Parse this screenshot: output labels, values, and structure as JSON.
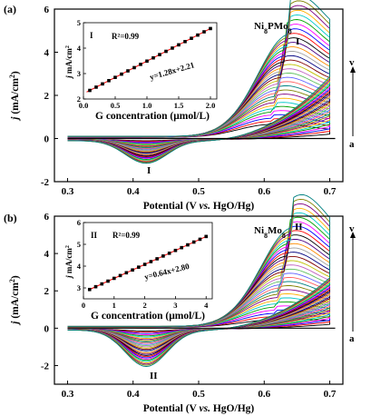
{
  "chart_data": [
    {
      "panel": "(a)",
      "type": "line",
      "xlabel": "Potential (V vs. HgO/Hg)",
      "ylabel": "j (mA/cm²)",
      "xlim": [
        0.28,
        0.72
      ],
      "ylim": [
        -2,
        6
      ],
      "xticks": [
        "0.3",
        "0.4",
        "0.5",
        "0.6",
        "0.7"
      ],
      "yticks": [
        "-2",
        "0",
        "2",
        "4",
        "6"
      ],
      "sample_label": "Ni8PMo8",
      "sample_main": "Ni",
      "sample_sub1": "8",
      "sample_mid": "PMo",
      "sample_sub2": "8",
      "peak_ox": {
        "label": "I",
        "x": 0.645,
        "y": 5.0
      },
      "peak_red": {
        "label": "I",
        "x": 0.42,
        "y": -0.95
      },
      "arrow_top": "v",
      "arrow_bottom": "a",
      "curve_count": 30,
      "cv_model": {
        "ox_peak_x": 0.64,
        "ox_peak_max": 4.75,
        "ox_peak_min": 0.6,
        "red_peak_x": 0.42,
        "red_peak_min": -1.05,
        "red_peak_max": -0.05,
        "end_current_max": 3.2
      },
      "inset": {
        "label": "I",
        "r2": "R²=0.99",
        "equation": "y=1.28x+2.21",
        "xlabel": "G concentration (μmol/L)",
        "ylabel": "j mA/cm²",
        "xlim": [
          0,
          2.1
        ],
        "ylim": [
          2,
          5
        ],
        "xticks": [
          "0.0",
          "0.5",
          "1.0",
          "1.5",
          "2.0"
        ],
        "yticks": [
          "2",
          "3",
          "4",
          "5"
        ],
        "slope": 1.28,
        "intercept": 2.21,
        "x": [
          0.1,
          0.2,
          0.3,
          0.4,
          0.5,
          0.6,
          0.7,
          0.8,
          0.9,
          1.0,
          1.1,
          1.2,
          1.3,
          1.4,
          1.5,
          1.6,
          1.7,
          1.8,
          1.9,
          2.0
        ]
      }
    },
    {
      "panel": "(b)",
      "type": "line",
      "xlabel": "Potential (V vs. HgO/Hg)",
      "ylabel": "j (mA/cm²)",
      "xlim": [
        0.28,
        0.72
      ],
      "ylim": [
        -3,
        6
      ],
      "xticks": [
        "0.3",
        "0.4",
        "0.5",
        "0.6",
        "0.7"
      ],
      "yticks": [
        "-2",
        "0",
        "2",
        "4",
        "6"
      ],
      "sample_label": "Ni8Mo8",
      "sample_main": "Ni",
      "sample_sub1": "8",
      "sample_mid": "Mo",
      "sample_sub2": "8",
      "peak_ox": {
        "label": "II",
        "x": 0.645,
        "y": 5.5
      },
      "peak_red": {
        "label": "II",
        "x": 0.43,
        "y": -2.4
      },
      "arrow_top": "v",
      "arrow_bottom": "a",
      "curve_count": 30,
      "cv_model": {
        "ox_peak_x": 0.645,
        "ox_peak_max": 5.3,
        "ox_peak_min": 0.4,
        "red_peak_x": 0.42,
        "red_peak_min": -1.95,
        "red_peak_max": -0.1,
        "end_current_max": 3.0
      },
      "inset": {
        "label": "II",
        "r2": "R²=0.99",
        "equation": "y=0.64x+2.80",
        "xlabel": "G concentration (μmol/L)",
        "ylabel": "j mA/cm²",
        "xlim": [
          0,
          4.2
        ],
        "ylim": [
          2.5,
          6
        ],
        "xticks": [
          "0",
          "1",
          "2",
          "3",
          "4"
        ],
        "yticks": [
          "3",
          "4",
          "5",
          "6"
        ],
        "slope": 0.64,
        "intercept": 2.8,
        "x": [
          0.2,
          0.4,
          0.6,
          0.8,
          1.0,
          1.2,
          1.4,
          1.6,
          1.8,
          2.0,
          2.2,
          2.4,
          2.6,
          2.8,
          3.0,
          3.2,
          3.4,
          3.6,
          3.8,
          4.0
        ]
      }
    }
  ],
  "series_colors": [
    "#000000",
    "#ff0000",
    "#0000ff",
    "#ff00ff",
    "#00a000",
    "#00c8c8",
    "#ffb000",
    "#800080",
    "#808000",
    "#008080",
    "#ff6060",
    "#6060ff",
    "#60c060",
    "#c060c0",
    "#c0c000",
    "#800000",
    "#000080",
    "#a0a0a0",
    "#ff8c00",
    "#4b0082"
  ]
}
